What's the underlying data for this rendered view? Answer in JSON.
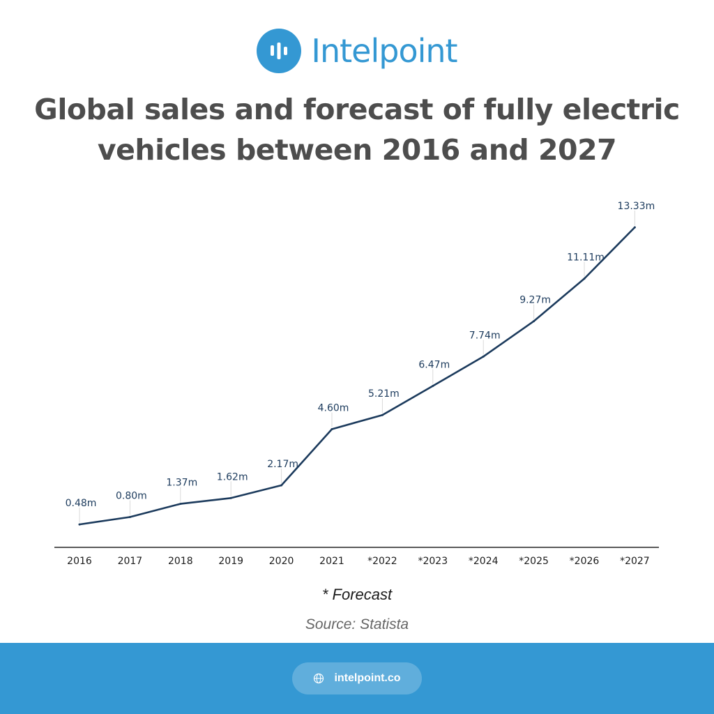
{
  "brand": {
    "name": "Intelpoint",
    "logo_icon": "bar-chart-icon",
    "color": "#3498d3"
  },
  "title": "Global sales and forecast of fully electric vehicles between 2016 and 2027",
  "footnote": "* Forecast",
  "source": "Source: Statista",
  "footer": {
    "link_text": "intelpoint.co",
    "link_icon": "globe-icon",
    "bg_color": "#3498d3"
  },
  "chart_data": {
    "type": "line",
    "categories": [
      "2016",
      "2017",
      "2018",
      "2019",
      "2020",
      "2021",
      "*2022",
      "*2023",
      "*2024",
      "*2025",
      "*2026",
      "*2027"
    ],
    "values": [
      0.48,
      0.8,
      1.37,
      1.62,
      2.17,
      4.6,
      5.21,
      6.47,
      7.74,
      9.27,
      11.11,
      13.33
    ],
    "data_labels": [
      "0.48m",
      "0.80m",
      "1.37m",
      "1.62m",
      "2.17m",
      "4.60m",
      "5.21m",
      "6.47m",
      "7.74m",
      "9.27m",
      "11.11m",
      "13.33m"
    ],
    "ylim": [
      0,
      13.33
    ],
    "grid": false,
    "line_color": "#1b3a5c"
  }
}
